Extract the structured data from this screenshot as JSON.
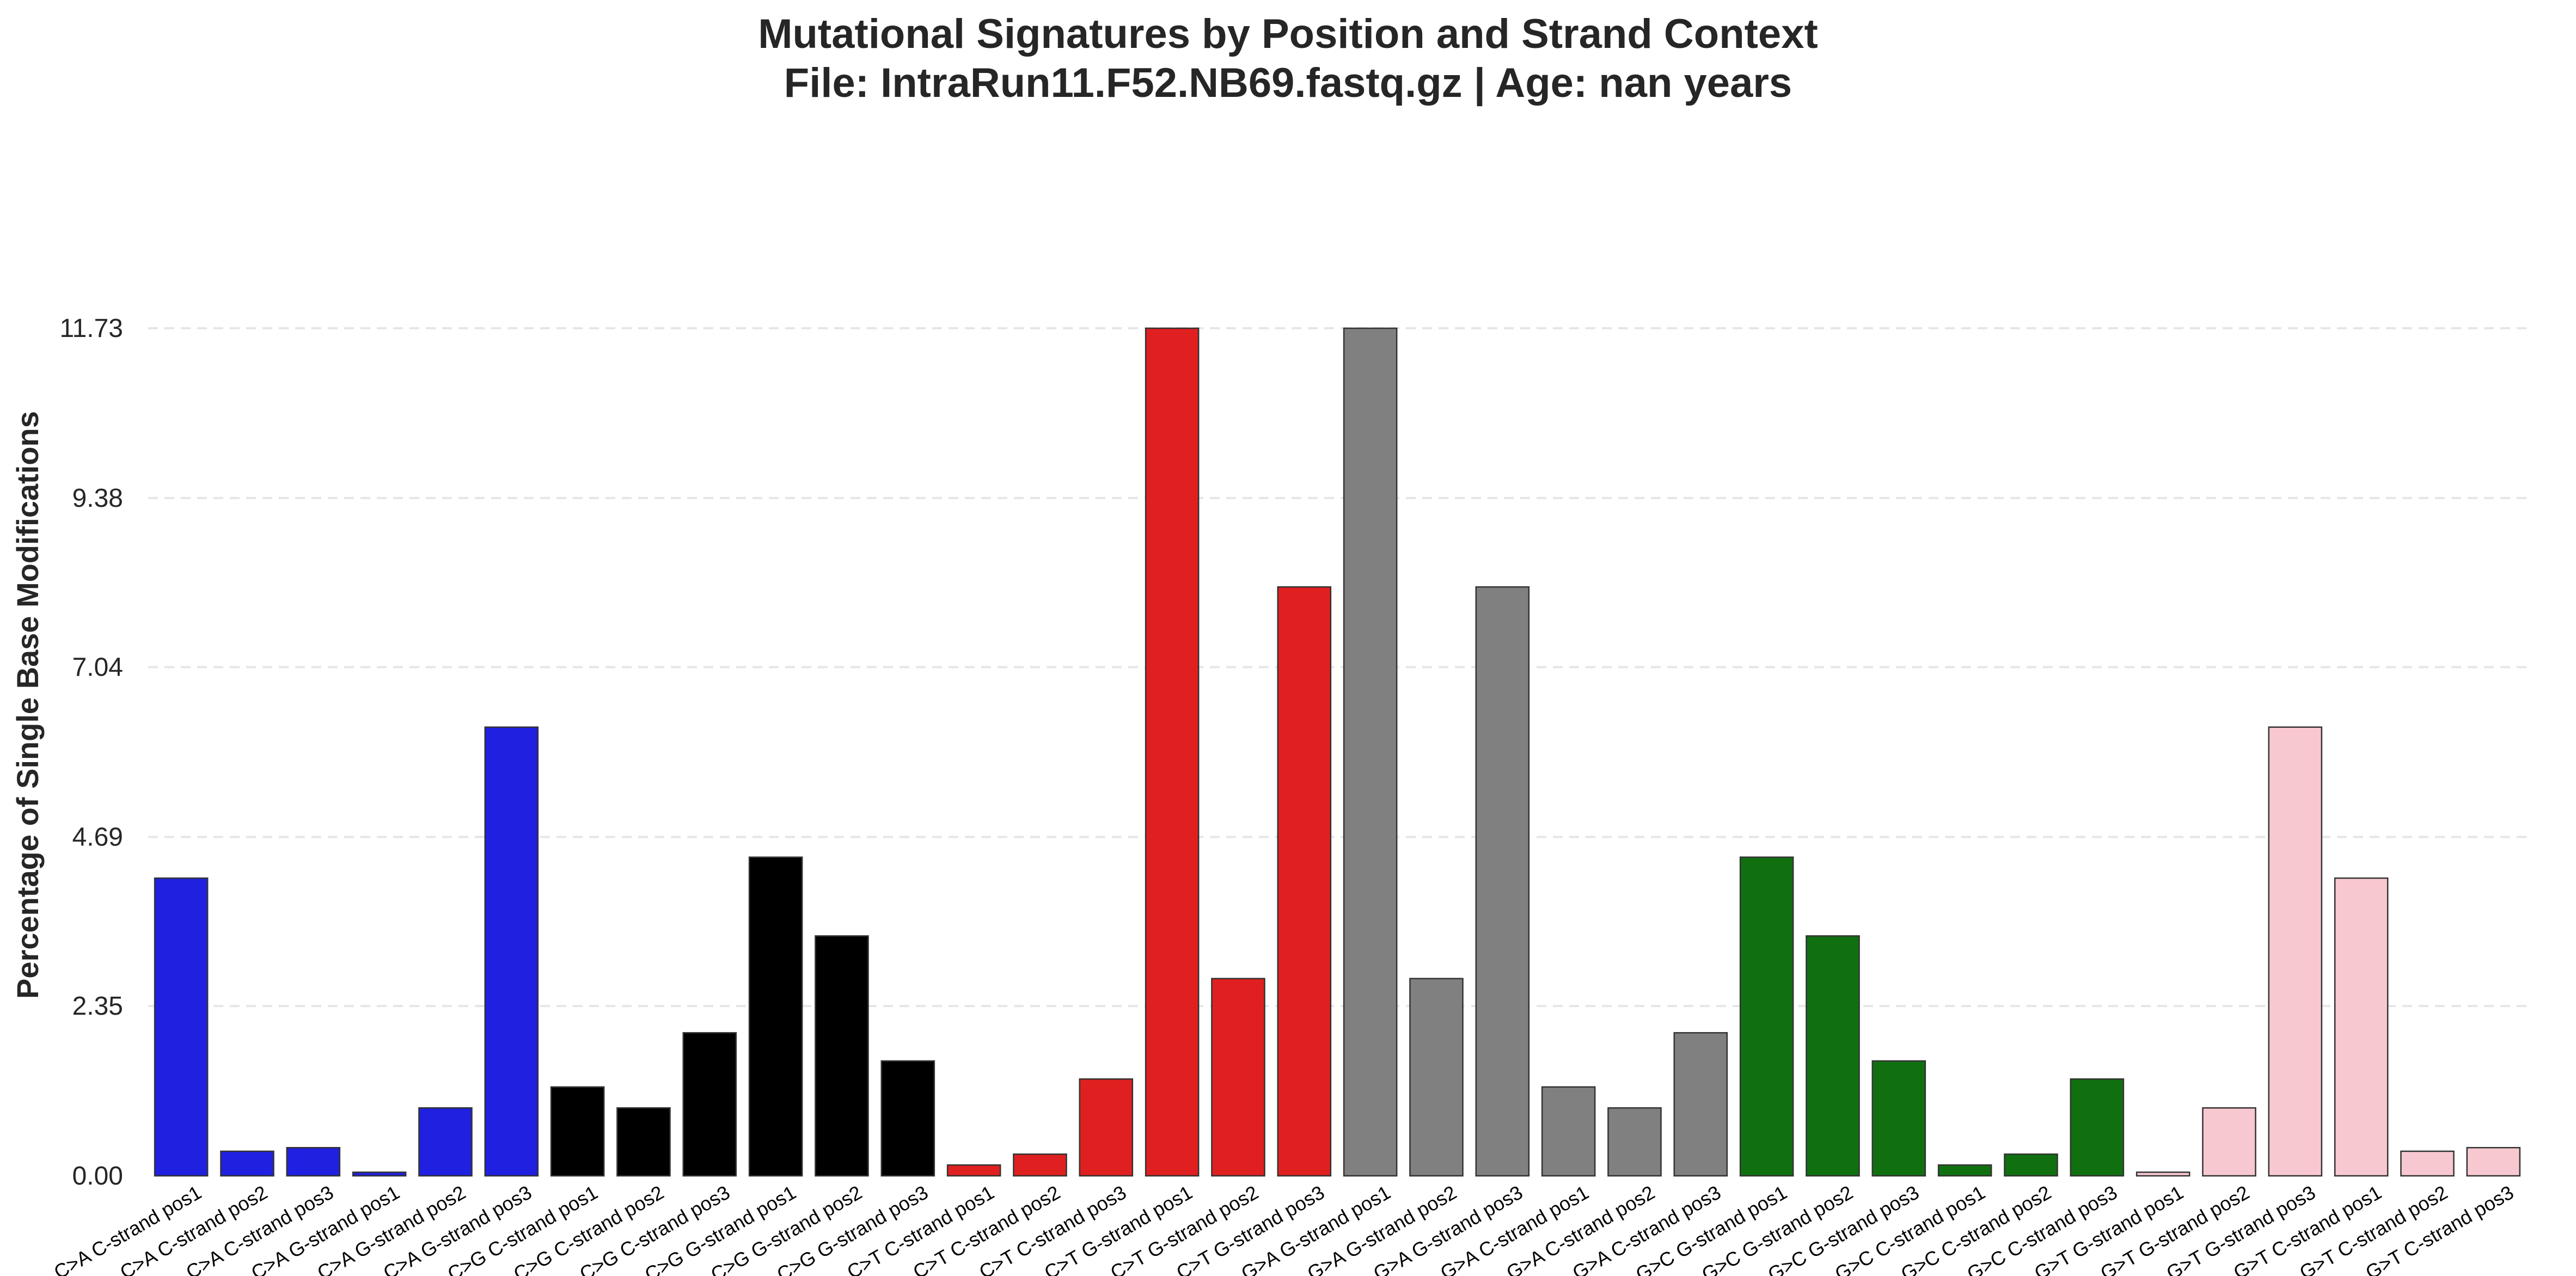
{
  "chart_data": {
    "type": "bar",
    "title_lines": [
      "Mutational Signatures by Position and Strand Context",
      "File: IntraRun11.F52.NB69.fastq.gz | Age: nan years"
    ],
    "xlabel": "",
    "ylabel": "Percentage of Single Base Modifications",
    "ylim": [
      0,
      11.73
    ],
    "yticks": [
      "0.00",
      "2.35",
      "4.69",
      "7.04",
      "9.38",
      "11.73"
    ],
    "grid": "horizontal dashed",
    "legend": "none",
    "colors": {
      "C>A": "#2020e0",
      "C>G": "#000000",
      "C>T": "#e02020",
      "G>A": "#808080",
      "G>C": "#107010",
      "G>T": "#f8c8d0",
      "edge": "#333333"
    },
    "categories": [
      "C>A C-strand pos1",
      "C>A C-strand pos2",
      "C>A C-strand pos3",
      "C>A G-strand pos1",
      "C>A G-strand pos2",
      "C>A G-strand pos3",
      "C>G C-strand pos1",
      "C>G C-strand pos2",
      "C>G C-strand pos3",
      "C>G G-strand pos1",
      "C>G G-strand pos2",
      "C>G G-strand pos3",
      "C>T C-strand pos1",
      "C>T C-strand pos2",
      "C>T C-strand pos3",
      "C>T G-strand pos1",
      "C>T G-strand pos2",
      "C>T G-strand pos3",
      "G>A G-strand pos1",
      "G>A G-strand pos2",
      "G>A G-strand pos3",
      "G>A C-strand pos1",
      "G>A C-strand pos2",
      "G>A C-strand pos3",
      "G>C G-strand pos1",
      "G>C G-strand pos2",
      "G>C G-strand pos3",
      "G>C C-strand pos1",
      "G>C C-strand pos2",
      "G>C C-strand pos3",
      "G>T G-strand pos1",
      "G>T G-strand pos2",
      "G>T G-strand pos3",
      "G>T C-strand pos1",
      "G>T C-strand pos2",
      "G>T C-strand pos3"
    ],
    "groups": [
      "C>A",
      "C>A",
      "C>A",
      "C>A",
      "C>A",
      "C>A",
      "C>G",
      "C>G",
      "C>G",
      "C>G",
      "C>G",
      "C>G",
      "C>T",
      "C>T",
      "C>T",
      "C>T",
      "C>T",
      "C>T",
      "G>A",
      "G>A",
      "G>A",
      "G>A",
      "G>A",
      "G>A",
      "G>C",
      "G>C",
      "G>C",
      "G>C",
      "G>C",
      "G>C",
      "G>T",
      "G>T",
      "G>T",
      "G>T",
      "G>T",
      "G>T"
    ],
    "values": [
      4.12,
      0.34,
      0.39,
      0.05,
      0.94,
      6.21,
      1.23,
      0.94,
      1.98,
      4.41,
      3.32,
      1.59,
      0.15,
      0.3,
      1.34,
      11.73,
      2.73,
      8.15,
      11.73,
      2.73,
      8.15,
      1.23,
      0.94,
      1.98,
      4.41,
      3.32,
      1.59,
      0.15,
      0.3,
      1.34,
      0.05,
      0.94,
      6.21,
      4.12,
      0.34,
      0.39
    ]
  }
}
